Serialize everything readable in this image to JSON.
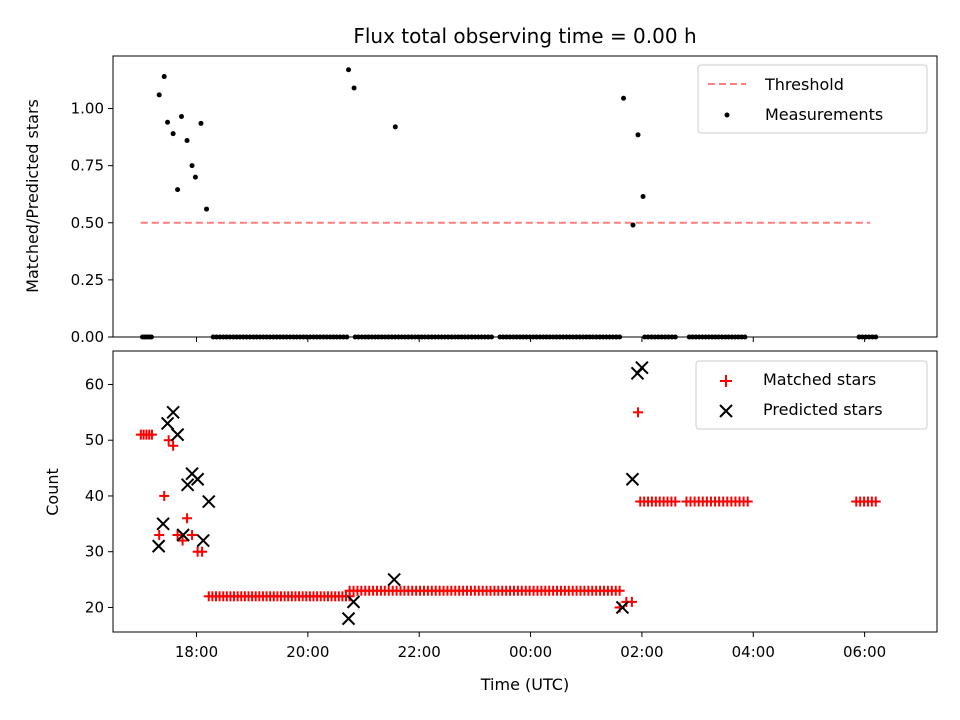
{
  "chart_data": [
    {
      "type": "line+scatter",
      "title": "Flux total observing time = 0.00 h",
      "xlabel": "",
      "ylabel": "Matched/Predicted stars",
      "xlim": [
        16.5,
        31.3
      ],
      "ylim": [
        0.0,
        1.23
      ],
      "yticks": [
        0.0,
        0.25,
        0.5,
        0.75,
        1.0
      ],
      "ytick_labels": [
        "0.00",
        "0.25",
        "0.50",
        "0.75",
        "1.00"
      ],
      "xticks": [
        18,
        20,
        22,
        24,
        26,
        28,
        30
      ],
      "legend_position": "top-right",
      "series": [
        {
          "name": "Threshold",
          "kind": "dashed-line",
          "color": "#ff7f7f",
          "x": [
            17.0,
            30.1
          ],
          "y": [
            0.5,
            0.5
          ]
        },
        {
          "name": "Measurements",
          "kind": "scatter",
          "color": "#000000",
          "points": [
            [
              17.33,
              1.06
            ],
            [
              17.42,
              1.14
            ],
            [
              17.48,
              0.94
            ],
            [
              17.58,
              0.89
            ],
            [
              17.66,
              0.645
            ],
            [
              17.73,
              0.965
            ],
            [
              17.83,
              0.86
            ],
            [
              17.92,
              0.75
            ],
            [
              17.98,
              0.7
            ],
            [
              18.08,
              0.935
            ],
            [
              18.18,
              0.56
            ],
            [
              20.73,
              1.17
            ],
            [
              20.83,
              1.09
            ],
            [
              21.57,
              0.92
            ],
            [
              25.67,
              1.045
            ],
            [
              25.84,
              0.49
            ],
            [
              25.93,
              0.885
            ],
            [
              26.02,
              0.615
            ],
            [
              17.03,
              0
            ],
            [
              17.07,
              0
            ],
            [
              17.11,
              0
            ],
            [
              17.15,
              0
            ],
            [
              17.19,
              0
            ]
          ],
          "zero_segments": [
            [
              18.3,
              20.7
            ],
            [
              20.85,
              23.3
            ],
            [
              23.45,
              25.6
            ],
            [
              26.05,
              26.6
            ],
            [
              26.85,
              27.85
            ],
            [
              29.9,
              30.2
            ]
          ]
        }
      ]
    },
    {
      "type": "scatter",
      "title": "",
      "xlabel": "Time (UTC)",
      "ylabel": "Count",
      "xlim": [
        16.5,
        31.3
      ],
      "ylim": [
        15.6,
        66.0
      ],
      "yticks": [
        20,
        30,
        40,
        50,
        60
      ],
      "ytick_labels": [
        "20",
        "30",
        "40",
        "50",
        "60"
      ],
      "xticks": [
        18,
        20,
        22,
        24,
        26,
        28,
        30
      ],
      "xtick_labels": [
        "18:00",
        "20:00",
        "22:00",
        "00:00",
        "02:00",
        "04:00",
        "06:00"
      ],
      "legend_position": "top-right",
      "series": [
        {
          "name": "Matched stars",
          "marker": "plus",
          "color": "#ff0000",
          "points": [
            [
              17.0,
              51
            ],
            [
              17.05,
              51
            ],
            [
              17.1,
              51
            ],
            [
              17.15,
              51
            ],
            [
              17.2,
              51
            ],
            [
              17.33,
              33
            ],
            [
              17.42,
              40
            ],
            [
              17.5,
              50
            ],
            [
              17.58,
              49
            ],
            [
              17.66,
              33
            ],
            [
              17.75,
              32
            ],
            [
              17.83,
              36
            ],
            [
              17.92,
              33
            ],
            [
              18.02,
              30
            ],
            [
              18.1,
              30
            ],
            [
              25.6,
              20
            ],
            [
              25.72,
              21
            ],
            [
              25.82,
              21
            ],
            [
              25.93,
              55
            ],
            [
              29.85,
              39
            ],
            [
              29.92,
              39
            ],
            [
              29.99,
              39
            ],
            [
              30.06,
              39
            ],
            [
              30.13,
              39
            ],
            [
              30.2,
              39
            ]
          ],
          "flat_runs": [
            {
              "y": 22,
              "x_from": 18.22,
              "x_to": 20.75,
              "n": 40
            },
            {
              "y": 23,
              "x_from": 20.75,
              "x_to": 25.6,
              "n": 70
            },
            {
              "y": 39,
              "x_from": 25.97,
              "x_to": 26.6,
              "n": 10
            },
            {
              "y": 39,
              "x_from": 26.8,
              "x_to": 27.9,
              "n": 16
            }
          ]
        },
        {
          "name": "Predicted stars",
          "marker": "x",
          "color": "#000000",
          "points": [
            [
              17.32,
              31
            ],
            [
              17.4,
              35
            ],
            [
              17.48,
              53
            ],
            [
              17.58,
              55
            ],
            [
              17.66,
              51
            ],
            [
              17.76,
              33
            ],
            [
              17.84,
              42
            ],
            [
              17.92,
              44
            ],
            [
              18.02,
              43
            ],
            [
              18.12,
              32
            ],
            [
              18.22,
              39
            ],
            [
              20.73,
              18
            ],
            [
              20.82,
              21
            ],
            [
              21.55,
              25
            ],
            [
              25.65,
              20
            ],
            [
              25.83,
              43
            ],
            [
              25.92,
              62
            ],
            [
              26.0,
              63
            ]
          ]
        }
      ]
    }
  ]
}
